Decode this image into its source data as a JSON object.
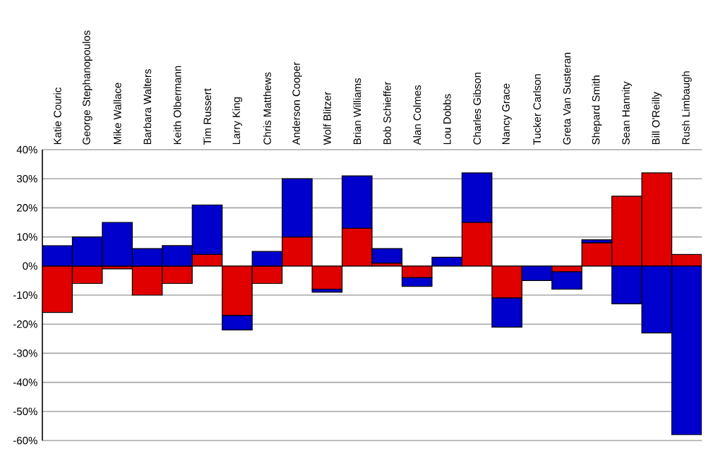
{
  "chart_data": {
    "type": "bar",
    "stacked": true,
    "grid": "y",
    "categories": [
      "Katie Couric",
      "George Stephanopoulos",
      "Mike Wallace",
      "Barbara Walters",
      "Keith Olbermann",
      "Tim Russert",
      "Larry King",
      "Chris Matthews",
      "Anderson Cooper",
      "Wolf Blitzer",
      "Brian Williams",
      "Bob Schieffer",
      "Alan Colmes",
      "Lou Dobbs",
      "Charles Gibson",
      "Nancy Grace",
      "Tucker Carlson",
      "Greta Van Susteran",
      "Shepard Smith",
      "Sean Hannity",
      "Bill O'Reilly",
      "Rush Limbaugh"
    ],
    "series": [
      {
        "color": "#e00000",
        "values": [
          -16,
          -6,
          -1,
          -10,
          -6,
          4,
          -17,
          -6,
          10,
          -8,
          13,
          1,
          -4,
          0,
          15,
          -11,
          0,
          -2,
          8,
          24,
          32,
          4
        ]
      },
      {
        "color": "#0000cc",
        "values": [
          7,
          10,
          15,
          6,
          7,
          17,
          -5,
          5,
          20,
          -1,
          18,
          5,
          -3,
          3,
          17,
          -10,
          -5,
          -6,
          1,
          -13,
          -23,
          -58
        ]
      }
    ],
    "ylim": [
      -60,
      40
    ],
    "yticks": [
      {
        "value": -60,
        "label": "-60%"
      },
      {
        "value": -50,
        "label": "-50%"
      },
      {
        "value": -40,
        "label": "-40%"
      },
      {
        "value": -30,
        "label": "-30%"
      },
      {
        "value": -20,
        "label": "-20%"
      },
      {
        "value": -10,
        "label": "-10%"
      },
      {
        "value": 0,
        "label": "0%"
      },
      {
        "value": 10,
        "label": "10%"
      },
      {
        "value": 20,
        "label": "20%"
      },
      {
        "value": 30,
        "label": "30%"
      },
      {
        "value": 40,
        "label": "40%"
      }
    ]
  }
}
